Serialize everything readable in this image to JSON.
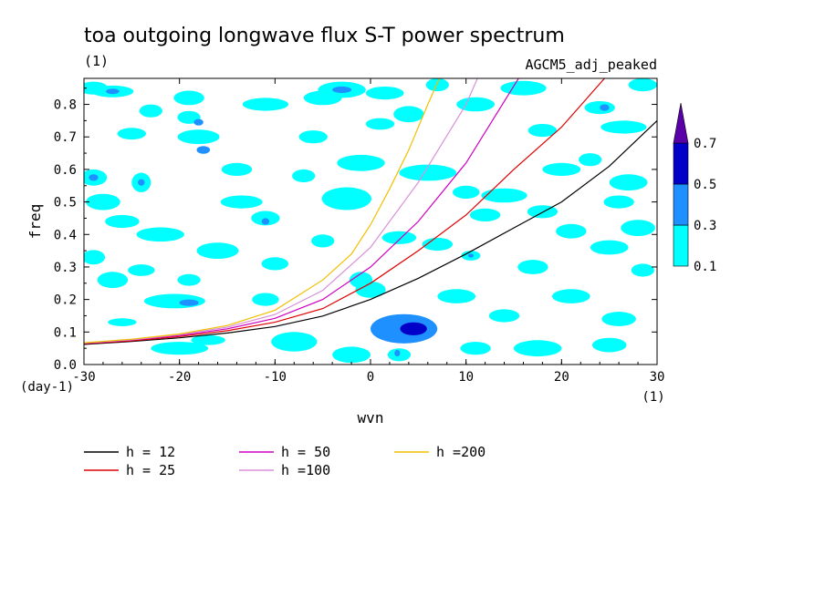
{
  "chart_data": {
    "type": "contour",
    "title": "toa outgoing longwave flux S-T power spectrum",
    "title_units": "(1)",
    "subtitle_right": "AGCM5_adj_peaked",
    "xlabel": "wvn",
    "ylabel": "freq",
    "x_units": "(1)",
    "y_units": "(day-1)",
    "xlim": [
      -30,
      30
    ],
    "ylim": [
      0.0,
      0.88
    ],
    "x_ticks": [
      -30,
      -20,
      -10,
      0,
      10,
      20,
      30
    ],
    "x_tick_labels": [
      "-30",
      "-20",
      "-10",
      "0",
      "10",
      "20",
      "30"
    ],
    "y_ticks": [
      0.0,
      0.1,
      0.2,
      0.3,
      0.4,
      0.5,
      0.6,
      0.7,
      0.8
    ],
    "y_tick_labels": [
      "0.0",
      "0.1",
      "0.2",
      "0.3",
      "0.4",
      "0.5",
      "0.6",
      "0.7",
      "0.8"
    ],
    "colorbar": {
      "levels": [
        0.1,
        0.3,
        0.5,
        0.7
      ],
      "labels": [
        "0.1",
        "0.3",
        "0.5",
        "0.7"
      ],
      "colors": [
        "#00ffff",
        "#1e90ff",
        "#0000c8",
        "#5a00a8"
      ],
      "extend": "max"
    },
    "filled_regions": [
      {
        "x": 3.5,
        "y": 0.11,
        "rx": 3.5,
        "ry": 0.045,
        "level": 0.3
      },
      {
        "x": 4.5,
        "y": 0.11,
        "rx": 1.4,
        "ry": 0.02,
        "level": 0.5
      },
      {
        "x": -20.5,
        "y": 0.195,
        "rx": 3.2,
        "ry": 0.022,
        "level": 0.1
      },
      {
        "x": -19,
        "y": 0.19,
        "rx": 1.0,
        "ry": 0.01,
        "level": 0.3
      },
      {
        "x": -29,
        "y": 0.85,
        "rx": 1.5,
        "ry": 0.02,
        "level": 0.1
      },
      {
        "x": -27,
        "y": 0.84,
        "rx": 2.2,
        "ry": 0.018,
        "level": 0.1
      },
      {
        "x": -27,
        "y": 0.84,
        "rx": 0.7,
        "ry": 0.008,
        "level": 0.3
      },
      {
        "x": -19,
        "y": 0.82,
        "rx": 1.6,
        "ry": 0.022,
        "level": 0.1
      },
      {
        "x": -23,
        "y": 0.78,
        "rx": 1.2,
        "ry": 0.02,
        "level": 0.1
      },
      {
        "x": -24,
        "y": 0.56,
        "rx": 1.0,
        "ry": 0.03,
        "level": 0.1
      },
      {
        "x": -24,
        "y": 0.56,
        "rx": 0.35,
        "ry": 0.01,
        "level": 0.3
      },
      {
        "x": -29,
        "y": 0.575,
        "rx": 1.4,
        "ry": 0.025,
        "level": 0.1
      },
      {
        "x": -29,
        "y": 0.575,
        "rx": 0.5,
        "ry": 0.01,
        "level": 0.3
      },
      {
        "x": -25,
        "y": 0.71,
        "rx": 1.5,
        "ry": 0.018,
        "level": 0.1
      },
      {
        "x": -18,
        "y": 0.7,
        "rx": 2.2,
        "ry": 0.022,
        "level": 0.1
      },
      {
        "x": -17.5,
        "y": 0.66,
        "rx": 0.7,
        "ry": 0.012,
        "level": 0.3
      },
      {
        "x": -19,
        "y": 0.76,
        "rx": 1.2,
        "ry": 0.02,
        "level": 0.1
      },
      {
        "x": -18,
        "y": 0.745,
        "rx": 0.5,
        "ry": 0.01,
        "level": 0.3
      },
      {
        "x": -11,
        "y": 0.8,
        "rx": 2.4,
        "ry": 0.02,
        "level": 0.1
      },
      {
        "x": -5,
        "y": 0.82,
        "rx": 2.0,
        "ry": 0.022,
        "level": 0.1
      },
      {
        "x": -3,
        "y": 0.845,
        "rx": 2.5,
        "ry": 0.025,
        "level": 0.1
      },
      {
        "x": -3,
        "y": 0.845,
        "rx": 1.0,
        "ry": 0.01,
        "level": 0.3
      },
      {
        "x": 1.5,
        "y": 0.835,
        "rx": 2.0,
        "ry": 0.02,
        "level": 0.1
      },
      {
        "x": 4,
        "y": 0.77,
        "rx": 1.6,
        "ry": 0.025,
        "level": 0.1
      },
      {
        "x": -6,
        "y": 0.7,
        "rx": 1.5,
        "ry": 0.02,
        "level": 0.1
      },
      {
        "x": -1,
        "y": 0.62,
        "rx": 2.5,
        "ry": 0.025,
        "level": 0.1
      },
      {
        "x": -2.5,
        "y": 0.51,
        "rx": 2.6,
        "ry": 0.035,
        "level": 0.1
      },
      {
        "x": -11,
        "y": 0.45,
        "rx": 1.5,
        "ry": 0.022,
        "level": 0.1
      },
      {
        "x": -11,
        "y": 0.44,
        "rx": 0.4,
        "ry": 0.01,
        "level": 0.3
      },
      {
        "x": -13.5,
        "y": 0.5,
        "rx": 2.2,
        "ry": 0.02,
        "level": 0.1
      },
      {
        "x": -22,
        "y": 0.4,
        "rx": 2.5,
        "ry": 0.022,
        "level": 0.1
      },
      {
        "x": -26,
        "y": 0.44,
        "rx": 1.8,
        "ry": 0.02,
        "level": 0.1
      },
      {
        "x": -28,
        "y": 0.5,
        "rx": 1.8,
        "ry": 0.025,
        "level": 0.1
      },
      {
        "x": -16,
        "y": 0.35,
        "rx": 2.2,
        "ry": 0.025,
        "level": 0.1
      },
      {
        "x": -10,
        "y": 0.31,
        "rx": 1.4,
        "ry": 0.02,
        "level": 0.1
      },
      {
        "x": -27,
        "y": 0.26,
        "rx": 1.6,
        "ry": 0.025,
        "level": 0.1
      },
      {
        "x": -29,
        "y": 0.33,
        "rx": 1.2,
        "ry": 0.022,
        "level": 0.1
      },
      {
        "x": -11,
        "y": 0.2,
        "rx": 1.4,
        "ry": 0.02,
        "level": 0.1
      },
      {
        "x": -26,
        "y": 0.13,
        "rx": 1.5,
        "ry": 0.012,
        "level": 0.1
      },
      {
        "x": -8,
        "y": 0.07,
        "rx": 2.4,
        "ry": 0.03,
        "level": 0.1
      },
      {
        "x": -2,
        "y": 0.03,
        "rx": 2.0,
        "ry": 0.025,
        "level": 0.1
      },
      {
        "x": 3,
        "y": 0.03,
        "rx": 1.2,
        "ry": 0.02,
        "level": 0.1
      },
      {
        "x": 2.8,
        "y": 0.035,
        "rx": 0.3,
        "ry": 0.01,
        "level": 0.3
      },
      {
        "x": 0,
        "y": 0.23,
        "rx": 1.6,
        "ry": 0.025,
        "level": 0.1
      },
      {
        "x": -1,
        "y": 0.26,
        "rx": 1.2,
        "ry": 0.025,
        "level": 0.1
      },
      {
        "x": -20,
        "y": 0.05,
        "rx": 3.0,
        "ry": 0.02,
        "level": 0.1
      },
      {
        "x": -17,
        "y": 0.075,
        "rx": 1.8,
        "ry": 0.015,
        "level": 0.1
      },
      {
        "x": 6,
        "y": 0.59,
        "rx": 3.0,
        "ry": 0.025,
        "level": 0.1
      },
      {
        "x": 10,
        "y": 0.53,
        "rx": 1.4,
        "ry": 0.02,
        "level": 0.1
      },
      {
        "x": 14,
        "y": 0.52,
        "rx": 2.4,
        "ry": 0.022,
        "level": 0.1
      },
      {
        "x": 12,
        "y": 0.46,
        "rx": 1.6,
        "ry": 0.02,
        "level": 0.1
      },
      {
        "x": 18,
        "y": 0.47,
        "rx": 1.6,
        "ry": 0.02,
        "level": 0.1
      },
      {
        "x": 20,
        "y": 0.6,
        "rx": 2.0,
        "ry": 0.02,
        "level": 0.1
      },
      {
        "x": 23,
        "y": 0.63,
        "rx": 1.2,
        "ry": 0.02,
        "level": 0.1
      },
      {
        "x": 26.5,
        "y": 0.73,
        "rx": 2.4,
        "ry": 0.02,
        "level": 0.1
      },
      {
        "x": 24,
        "y": 0.79,
        "rx": 1.6,
        "ry": 0.02,
        "level": 0.1
      },
      {
        "x": 24.5,
        "y": 0.79,
        "rx": 0.5,
        "ry": 0.01,
        "level": 0.3
      },
      {
        "x": 28.5,
        "y": 0.86,
        "rx": 1.5,
        "ry": 0.02,
        "level": 0.1
      },
      {
        "x": 11,
        "y": 0.8,
        "rx": 2.0,
        "ry": 0.022,
        "level": 0.1
      },
      {
        "x": 16,
        "y": 0.85,
        "rx": 2.4,
        "ry": 0.022,
        "level": 0.1
      },
      {
        "x": 18,
        "y": 0.72,
        "rx": 1.5,
        "ry": 0.02,
        "level": 0.1
      },
      {
        "x": 27,
        "y": 0.56,
        "rx": 2.0,
        "ry": 0.025,
        "level": 0.1
      },
      {
        "x": 26,
        "y": 0.5,
        "rx": 1.6,
        "ry": 0.02,
        "level": 0.1
      },
      {
        "x": 28,
        "y": 0.42,
        "rx": 1.8,
        "ry": 0.025,
        "level": 0.1
      },
      {
        "x": 25,
        "y": 0.36,
        "rx": 2.0,
        "ry": 0.022,
        "level": 0.1
      },
      {
        "x": 21,
        "y": 0.41,
        "rx": 1.6,
        "ry": 0.022,
        "level": 0.1
      },
      {
        "x": 17,
        "y": 0.3,
        "rx": 1.6,
        "ry": 0.022,
        "level": 0.1
      },
      {
        "x": 10.5,
        "y": 0.335,
        "rx": 1.0,
        "ry": 0.015,
        "level": 0.1
      },
      {
        "x": 10.5,
        "y": 0.335,
        "rx": 0.3,
        "ry": 0.006,
        "level": 0.3
      },
      {
        "x": 7,
        "y": 0.37,
        "rx": 1.6,
        "ry": 0.02,
        "level": 0.1
      },
      {
        "x": 3,
        "y": 0.39,
        "rx": 1.8,
        "ry": 0.02,
        "level": 0.1
      },
      {
        "x": 9,
        "y": 0.21,
        "rx": 2.0,
        "ry": 0.022,
        "level": 0.1
      },
      {
        "x": 14,
        "y": 0.15,
        "rx": 1.6,
        "ry": 0.02,
        "level": 0.1
      },
      {
        "x": 21,
        "y": 0.21,
        "rx": 2.0,
        "ry": 0.022,
        "level": 0.1
      },
      {
        "x": 26,
        "y": 0.14,
        "rx": 1.8,
        "ry": 0.022,
        "level": 0.1
      },
      {
        "x": 17.5,
        "y": 0.05,
        "rx": 2.5,
        "ry": 0.025,
        "level": 0.1
      },
      {
        "x": 25,
        "y": 0.06,
        "rx": 1.8,
        "ry": 0.022,
        "level": 0.1
      },
      {
        "x": 11,
        "y": 0.05,
        "rx": 1.6,
        "ry": 0.02,
        "level": 0.1
      },
      {
        "x": 28.5,
        "y": 0.29,
        "rx": 1.2,
        "ry": 0.02,
        "level": 0.1
      },
      {
        "x": -5,
        "y": 0.38,
        "rx": 1.2,
        "ry": 0.02,
        "level": 0.1
      },
      {
        "x": -14,
        "y": 0.6,
        "rx": 1.6,
        "ry": 0.02,
        "level": 0.1
      },
      {
        "x": -7,
        "y": 0.58,
        "rx": 1.2,
        "ry": 0.02,
        "level": 0.1
      },
      {
        "x": 1,
        "y": 0.74,
        "rx": 1.5,
        "ry": 0.018,
        "level": 0.1
      },
      {
        "x": 7,
        "y": 0.86,
        "rx": 1.2,
        "ry": 0.02,
        "level": 0.1
      },
      {
        "x": -24,
        "y": 0.29,
        "rx": 1.4,
        "ry": 0.018,
        "level": 0.1
      },
      {
        "x": -19,
        "y": 0.26,
        "rx": 1.2,
        "ry": 0.018,
        "level": 0.1
      }
    ],
    "series": [
      {
        "name": "h = 12",
        "h": 12,
        "color": "#000000",
        "x": [
          -30,
          -25,
          -20,
          -15,
          -10,
          -5,
          0,
          5,
          10,
          15,
          20,
          25,
          30
        ],
        "y": [
          0.062,
          0.071,
          0.082,
          0.097,
          0.117,
          0.149,
          0.2,
          0.265,
          0.34,
          0.42,
          0.5,
          0.61,
          0.75
        ]
      },
      {
        "name": "h = 25",
        "h": 25,
        "color": "#e00000",
        "x": [
          -30,
          -25,
          -20,
          -15,
          -10,
          -5,
          0,
          5,
          10,
          15,
          20,
          24.5
        ],
        "y": [
          0.064,
          0.073,
          0.086,
          0.104,
          0.13,
          0.172,
          0.25,
          0.35,
          0.46,
          0.6,
          0.73,
          0.88
        ]
      },
      {
        "name": "h = 50",
        "h": 50,
        "color": "#d000c0",
        "x": [
          -30,
          -25,
          -20,
          -15,
          -10,
          -5,
          0,
          5,
          10,
          15.5
        ],
        "y": [
          0.065,
          0.075,
          0.089,
          0.11,
          0.142,
          0.2,
          0.3,
          0.44,
          0.62,
          0.88
        ]
      },
      {
        "name": "h =100",
        "h": 100,
        "color": "#d890d8",
        "x": [
          -30,
          -25,
          -20,
          -15,
          -10,
          -5,
          0,
          5,
          10,
          11.2
        ],
        "y": [
          0.066,
          0.076,
          0.092,
          0.115,
          0.154,
          0.228,
          0.36,
          0.56,
          0.8,
          0.88
        ]
      },
      {
        "name": "h =200",
        "h": 200,
        "color": "#f0c000",
        "x": [
          -30,
          -25,
          -20,
          -15,
          -10,
          -5,
          -2,
          0,
          2,
          4,
          6,
          7.2
        ],
        "y": [
          0.067,
          0.078,
          0.094,
          0.12,
          0.167,
          0.26,
          0.34,
          0.43,
          0.54,
          0.66,
          0.8,
          0.88
        ]
      }
    ],
    "legend_position": "bottom-left",
    "grid": false
  }
}
